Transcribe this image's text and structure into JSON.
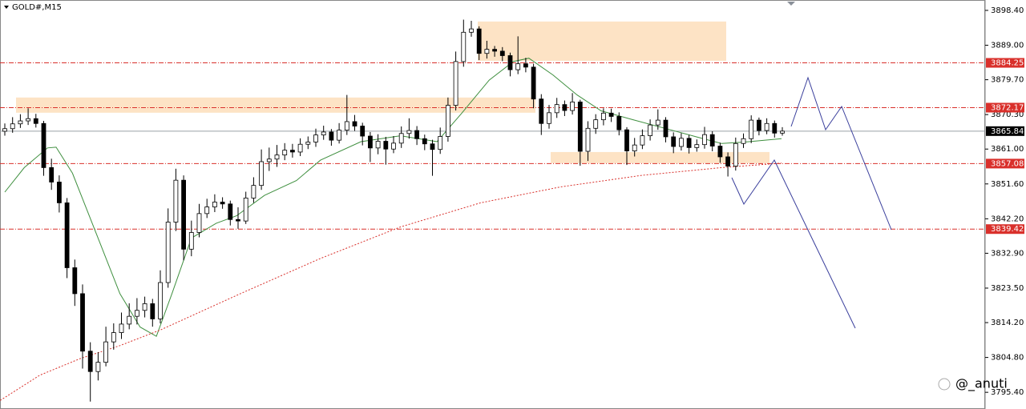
{
  "chart_data": {
    "type": "candlestick",
    "title": "GOLD#,M15",
    "watermark": "@_anuti",
    "ylim": [
      3790.9,
      3901.2
    ],
    "yticks": [
      {
        "value": 3898.4,
        "label": "3898.40"
      },
      {
        "value": 3889.0,
        "label": "3889.00"
      },
      {
        "value": 3879.7,
        "label": "3879.70"
      },
      {
        "value": 3870.3,
        "label": "3870.30"
      },
      {
        "value": 3861.0,
        "label": "3861.00"
      },
      {
        "value": 3851.6,
        "label": "3851.60"
      },
      {
        "value": 3842.2,
        "label": "3842.20"
      },
      {
        "value": 3832.9,
        "label": "3832.90"
      },
      {
        "value": 3823.5,
        "label": "3823.50"
      },
      {
        "value": 3814.2,
        "label": "3814.20"
      },
      {
        "value": 3804.8,
        "label": "3804.80"
      },
      {
        "value": 3795.4,
        "label": "3795.40"
      }
    ],
    "price_levels": [
      3884.25,
      3872.17,
      3857.08,
      3839.42
    ],
    "level_color": "#d9302b",
    "last_price": 3865.84,
    "zones": [
      {
        "low": 3870.8,
        "high": 3874.9
      },
      {
        "low": 3884.8,
        "high": 3895.4
      },
      {
        "low": 3857.2,
        "high": 3860.2
      }
    ],
    "zone_color": "#fde0bf",
    "open": [
      3865.8,
      3866.5,
      3867.8,
      3868.6,
      3869.2,
      3867.9,
      3856.0,
      3852.1,
      3846.5,
      3829.0,
      3822.0,
      3806.5,
      3801.0,
      3803.5,
      3809.0,
      3811.5,
      3813.8,
      3815.9,
      3817.5,
      3819.3,
      3815.2,
      3825.0,
      3841.3,
      3852.6,
      3834.0,
      3838.5,
      3843.6,
      3845.4,
      3846.7,
      3846.2,
      3842.0,
      3841.6,
      3847.8,
      3851.2,
      3857.6,
      3858.3,
      3859.4,
      3860.7,
      3860.2,
      3862.3,
      3862.9,
      3864.8,
      3865.6,
      3863.4,
      3866.1,
      3868.4,
      3867.2,
      3864.5,
      3861.3,
      3863.1,
      3861.0,
      3862.6,
      3865.2,
      3866.0,
      3863.8,
      3862.4,
      3860.9,
      3864.4,
      3872.8,
      3884.6,
      3892.5,
      3893.4,
      3886.8,
      3887.9,
      3887.4,
      3886.2,
      3882.4,
      3884.0,
      3883.1,
      3874.5,
      3867.9,
      3870.8,
      3873.0,
      3871.4,
      3873.7,
      3860.4,
      3866.6,
      3868.9,
      3870.7,
      3869.8,
      3866.2,
      3860.5,
      3862.1,
      3864.6,
      3867.5,
      3868.8,
      3864.3,
      3861.7,
      3863.9,
      3861.4,
      3862.2,
      3864.9,
      3861.8,
      3858.9,
      3856.4,
      3862.5,
      3863.8,
      3868.8,
      3866.0,
      3867.9,
      3865.3
    ],
    "high": [
      3867.9,
      3869.6,
      3870.4,
      3872.0,
      3870.5,
      3868.6,
      3858.4,
      3853.9,
      3847.8,
      3831.2,
      3824.5,
      3808.9,
      3806.2,
      3813.1,
      3814.0,
      3816.9,
      3819.4,
      3820.8,
      3821.2,
      3820.6,
      3828.3,
      3845.0,
      3855.7,
      3853.9,
      3841.7,
      3846.2,
      3847.6,
      3848.8,
      3848.0,
      3847.1,
      3845.3,
      3849.5,
      3853.4,
      3860.9,
      3861.4,
      3862.1,
      3862.6,
      3862.4,
      3863.9,
      3864.4,
      3866.5,
      3867.3,
      3866.4,
      3868.0,
      3875.6,
      3870.2,
      3868.1,
      3865.6,
      3865.0,
      3864.3,
      3864.5,
      3867.1,
      3869.3,
      3867.2,
      3864.9,
      3863.5,
      3866.8,
      3874.9,
      3887.3,
      3895.9,
      3895.6,
      3894.1,
      3890.2,
      3888.8,
      3888.5,
      3887.0,
      3891.4,
      3885.6,
      3884.0,
      3875.8,
      3872.9,
      3874.8,
      3874.1,
      3876.1,
      3874.3,
      3868.5,
      3870.4,
      3872.0,
      3871.9,
      3870.9,
      3866.9,
      3864.0,
      3866.3,
      3869.0,
      3871.7,
      3869.6,
      3865.5,
      3865.3,
      3864.8,
      3863.6,
      3867.0,
      3865.8,
      3862.7,
      3860.1,
      3864.1,
      3865.2,
      3870.1,
      3869.5,
      3869.3,
      3868.7,
      3866.9
    ],
    "low": [
      3864.6,
      3865.4,
      3866.7,
      3867.5,
      3866.8,
      3853.8,
      3850.0,
      3843.9,
      3826.2,
      3818.7,
      3801.8,
      3792.9,
      3798.6,
      3802.4,
      3806.9,
      3809.8,
      3812.4,
      3813.7,
      3815.6,
      3813.1,
      3814.0,
      3823.6,
      3838.9,
      3831.0,
      3832.1,
      3837.2,
      3842.4,
      3844.0,
      3844.9,
      3840.4,
      3839.5,
      3840.8,
      3846.5,
      3850.0,
      3855.1,
      3856.2,
      3858.0,
      3858.7,
      3859.1,
      3861.0,
      3861.6,
      3863.5,
      3861.9,
      3862.5,
      3864.8,
      3865.9,
      3862.0,
      3857.5,
      3859.6,
      3856.8,
      3859.9,
      3861.3,
      3863.8,
      3862.1,
      3860.7,
      3853.8,
      3859.7,
      3863.0,
      3871.4,
      3883.2,
      3891.3,
      3885.0,
      3885.4,
      3885.9,
      3884.7,
      3880.6,
      3881.2,
      3881.7,
      3872.0,
      3864.8,
      3866.5,
      3869.4,
      3869.9,
      3870.3,
      3856.5,
      3857.8,
      3865.1,
      3867.4,
      3868.3,
      3864.7,
      3856.7,
      3859.0,
      3861.0,
      3863.3,
      3866.2,
      3862.8,
      3859.9,
      3860.6,
      3859.8,
      3860.3,
      3861.1,
      3860.4,
      3857.3,
      3853.6,
      3855.2,
      3861.3,
      3862.6,
      3864.7,
      3865.0,
      3864.1,
      3864.6
    ],
    "close": [
      3866.5,
      3867.8,
      3868.6,
      3869.2,
      3867.9,
      3856.0,
      3852.1,
      3846.5,
      3829.0,
      3822.0,
      3806.5,
      3801.0,
      3803.5,
      3809.0,
      3811.5,
      3813.8,
      3815.9,
      3817.5,
      3819.3,
      3815.2,
      3825.0,
      3841.3,
      3852.6,
      3834.0,
      3838.5,
      3843.6,
      3845.4,
      3846.7,
      3846.2,
      3842.0,
      3841.6,
      3847.8,
      3851.2,
      3857.6,
      3858.3,
      3859.4,
      3860.7,
      3860.2,
      3862.3,
      3862.9,
      3864.8,
      3865.6,
      3863.4,
      3866.1,
      3868.4,
      3867.2,
      3864.5,
      3861.3,
      3863.1,
      3861.0,
      3862.6,
      3865.2,
      3866.0,
      3863.8,
      3862.4,
      3860.9,
      3864.4,
      3872.8,
      3884.6,
      3892.5,
      3893.4,
      3886.8,
      3887.9,
      3887.4,
      3886.2,
      3882.4,
      3884.0,
      3883.1,
      3874.5,
      3867.9,
      3870.8,
      3873.0,
      3871.4,
      3873.7,
      3860.4,
      3866.6,
      3868.9,
      3870.7,
      3869.8,
      3866.2,
      3860.5,
      3862.1,
      3864.6,
      3867.5,
      3868.8,
      3864.3,
      3861.7,
      3863.9,
      3861.4,
      3862.2,
      3864.9,
      3861.8,
      3858.9,
      3856.4,
      3862.5,
      3863.8,
      3868.8,
      3866.0,
      3867.9,
      3865.3,
      3865.84
    ],
    "ma_lines": [
      {
        "color": "#3f8f3f",
        "dashed": false,
        "x": [
          0,
          2.5,
          5.5,
          6.6,
          8.7,
          11.8,
          14.8,
          17.4,
          19.5,
          21.5,
          24,
          27.2,
          29.8,
          33.4,
          37.5,
          40.6,
          45.8,
          50.9,
          55.6,
          58.7,
          62.3,
          65.4,
          67.4,
          70.5,
          73.6,
          76.7,
          80.8,
          84.9,
          89.1,
          92.2,
          95.3,
          99.9
        ],
        "values": [
          3849.4,
          3856,
          3861.3,
          3861.5,
          3854.5,
          3838,
          3822,
          3813,
          3810.5,
          3822,
          3837,
          3841,
          3843,
          3848.5,
          3852.5,
          3858,
          3863,
          3864.6,
          3863,
          3870.5,
          3879.6,
          3884.6,
          3885.5,
          3881,
          3875.6,
          3871.3,
          3868.9,
          3866.6,
          3864.2,
          3862.5,
          3862.9,
          3863.8
        ]
      },
      {
        "color": "#d9302b",
        "dashed": true,
        "x": [
          -0.6,
          4.5,
          9.7,
          14.8,
          20,
          30.3,
          40.6,
          50.9,
          61.2,
          71.5,
          81.9,
          92.2,
          99.9
        ],
        "values": [
          3793.2,
          3800,
          3804.5,
          3808,
          3812.2,
          3822,
          3831.5,
          3840,
          3846.5,
          3850.8,
          3853.9,
          3856,
          3857.2
        ]
      }
    ]
  }
}
